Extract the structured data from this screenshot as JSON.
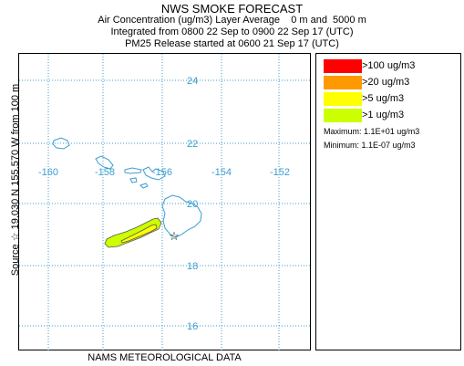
{
  "header": {
    "title": "NWS SMOKE FORECAST",
    "line1": "Air Concentration (ug/m3) Layer Average    0 m and  5000 m",
    "line2": "Integrated from 0800 22 Sep to 0900 22 Sep 17 (UTC)",
    "line3": "PM25 Release started at 0600 21 Sep 17 (UTC)"
  },
  "side_label": "Source ☆  19.030  N 155.570  W        from   100 m",
  "bottom_label": "NAMS METEOROLOGICAL DATA",
  "map": {
    "lat_labels": [
      "24",
      "22",
      "20",
      "18",
      "16"
    ],
    "lon_labels": [
      "-160",
      "-158",
      "-156",
      "-154",
      "-152"
    ],
    "grid_color": "#3c9ecf",
    "coast_color": "#3c9ecf",
    "source_symbol": "☆"
  },
  "legend": {
    "items": [
      {
        "label": ">100 ug/m3",
        "color": "#ff0000"
      },
      {
        "label": ">20 ug/m3",
        "color": "#ff9900"
      },
      {
        "label": ">5 ug/m3",
        "color": "#ffff00"
      },
      {
        "label": ">1 ug/m3",
        "color": "#ccff00"
      }
    ],
    "maximum": "Maximum: 1.1E+01 ug/m3",
    "minimum": "Minimum: 1.1E-07 ug/m3"
  }
}
